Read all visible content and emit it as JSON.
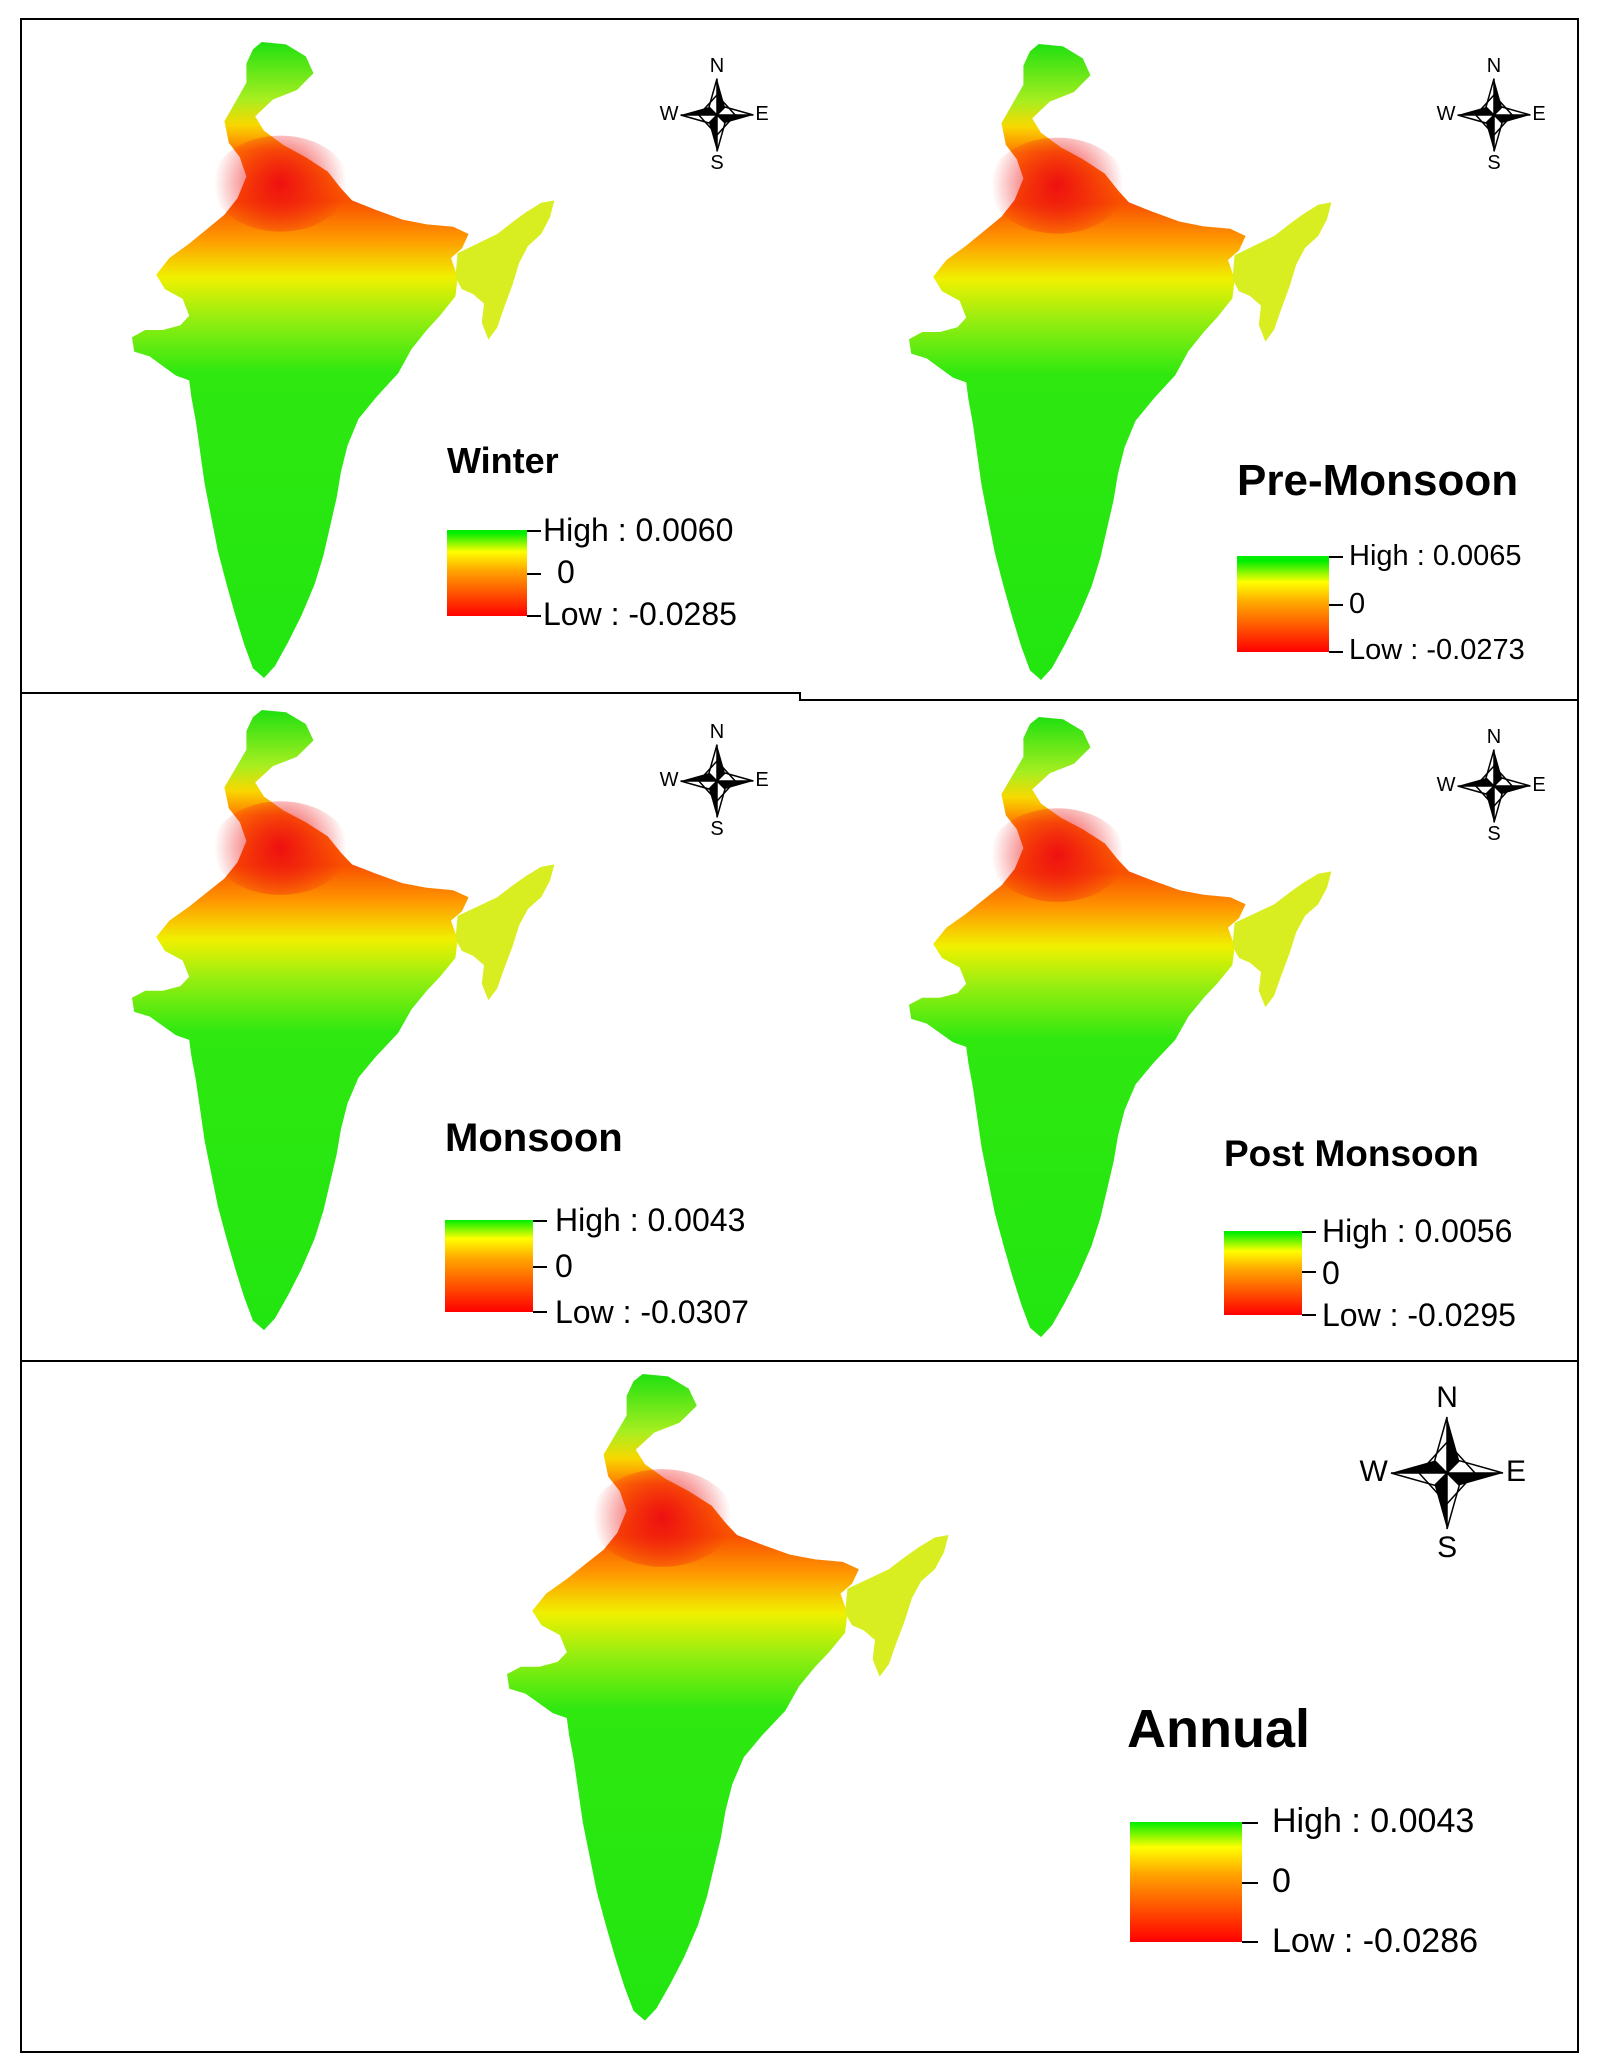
{
  "colors": {
    "high": "#00ee00",
    "mid": "#ffff00",
    "low": "#ff0000"
  },
  "compass": {
    "north": "N",
    "south": "S",
    "east": "E",
    "west": "W"
  },
  "panels": [
    {
      "title": "Winter",
      "high_label": "High : 0.0060",
      "zero_label": "0",
      "low_label": "Low : -0.0285",
      "high": 0.006,
      "low": -0.0285
    },
    {
      "title": "Pre-Monsoon",
      "high_label": "High : 0.0065",
      "zero_label": "0",
      "low_label": "Low : -0.0273",
      "high": 0.0065,
      "low": -0.0273
    },
    {
      "title": "Monsoon",
      "high_label": "High : 0.0043",
      "zero_label": "0",
      "low_label": "Low : -0.0307",
      "high": 0.0043,
      "low": -0.0307
    },
    {
      "title": "Post Monsoon",
      "high_label": "High : 0.0056",
      "zero_label": "0",
      "low_label": "Low : -0.0295",
      "high": 0.0056,
      "low": -0.0295
    },
    {
      "title": "Annual",
      "high_label": "High : 0.0043",
      "zero_label": "0",
      "low_label": "Low : -0.0286",
      "high": 0.0043,
      "low": -0.0286
    }
  ]
}
